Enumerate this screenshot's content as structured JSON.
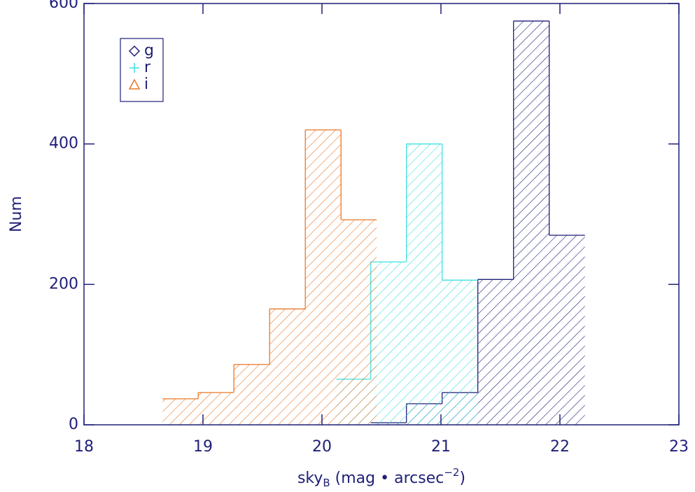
{
  "chart_data": {
    "type": "histogram",
    "xlabel": {
      "text": "sky",
      "sub": "B",
      "mid": " (mag • arcsec",
      "sup": "−2",
      "end": ")"
    },
    "ylabel": "Num",
    "xlim": [
      18,
      23
    ],
    "ylim": [
      0,
      600
    ],
    "xticks": [
      18,
      19,
      20,
      21,
      22,
      23
    ],
    "yticks": [
      0,
      200,
      400,
      600
    ],
    "axis_color": "#1f1f78",
    "series": [
      {
        "name": "g",
        "color": "#1f1f78",
        "marker": "diamond",
        "bins": [
          20.41,
          20.71,
          21.01,
          21.31,
          21.61,
          21.91,
          22.21
        ],
        "values": [
          3,
          30,
          46,
          207,
          575,
          270
        ]
      },
      {
        "name": "r",
        "color": "#3fe0e0",
        "marker": "plus",
        "bins": [
          20.12,
          20.41,
          20.71,
          21.01,
          21.31
        ],
        "values": [
          65,
          232,
          400,
          206
        ]
      },
      {
        "name": "i",
        "color": "#e8782a",
        "marker": "triangle",
        "bins": [
          18.66,
          18.96,
          19.26,
          19.56,
          19.86,
          20.16,
          20.46
        ],
        "values": [
          37,
          46,
          86,
          165,
          420,
          292
        ]
      }
    ]
  }
}
